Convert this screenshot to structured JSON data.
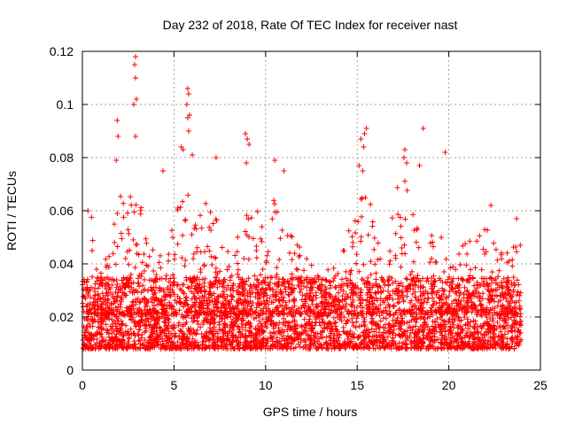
{
  "chart_data": {
    "type": "scatter",
    "title": "Day 232 of 2018, Rate Of TEC Index for receiver nast",
    "xlabel": "GPS time / hours",
    "ylabel": "ROTI / TECUs",
    "xlim": [
      0,
      25
    ],
    "ylim": [
      0,
      0.12
    ],
    "xticks": [
      0,
      5,
      10,
      15,
      20,
      25
    ],
    "yticks": [
      0,
      0.02,
      0.04,
      0.06,
      0.08,
      0.1,
      0.12
    ],
    "xtick_labels": [
      "0",
      "5",
      "10",
      "15",
      "20",
      "25"
    ],
    "ytick_labels": [
      "0",
      "0.02",
      "0.04",
      "0.06",
      "0.08",
      "0.1",
      "0.12"
    ],
    "grid": true,
    "marker": "plus",
    "series_color": "#ff0000",
    "x_extent": [
      0,
      23.95
    ],
    "typical_range": [
      0.008,
      0.035
    ],
    "outliers": [
      {
        "x": 2.9,
        "y": 0.118
      },
      {
        "x": 2.85,
        "y": 0.115
      },
      {
        "x": 2.9,
        "y": 0.11
      },
      {
        "x": 2.8,
        "y": 0.1
      },
      {
        "x": 2.95,
        "y": 0.102
      },
      {
        "x": 2.9,
        "y": 0.088
      },
      {
        "x": 1.9,
        "y": 0.094
      },
      {
        "x": 1.95,
        "y": 0.088
      },
      {
        "x": 1.85,
        "y": 0.079
      },
      {
        "x": 5.75,
        "y": 0.106
      },
      {
        "x": 5.8,
        "y": 0.104
      },
      {
        "x": 5.7,
        "y": 0.1
      },
      {
        "x": 5.75,
        "y": 0.095
      },
      {
        "x": 5.8,
        "y": 0.09
      },
      {
        "x": 5.85,
        "y": 0.096
      },
      {
        "x": 5.4,
        "y": 0.084
      },
      {
        "x": 5.5,
        "y": 0.083
      },
      {
        "x": 6.0,
        "y": 0.081
      },
      {
        "x": 4.4,
        "y": 0.075
      },
      {
        "x": 7.3,
        "y": 0.08
      },
      {
        "x": 8.9,
        "y": 0.089
      },
      {
        "x": 9.0,
        "y": 0.087
      },
      {
        "x": 9.1,
        "y": 0.085
      },
      {
        "x": 8.95,
        "y": 0.078
      },
      {
        "x": 10.5,
        "y": 0.079
      },
      {
        "x": 11.0,
        "y": 0.075
      },
      {
        "x": 15.2,
        "y": 0.087
      },
      {
        "x": 15.4,
        "y": 0.089
      },
      {
        "x": 15.5,
        "y": 0.091
      },
      {
        "x": 15.35,
        "y": 0.084
      },
      {
        "x": 15.1,
        "y": 0.077
      },
      {
        "x": 15.3,
        "y": 0.075
      },
      {
        "x": 17.6,
        "y": 0.083
      },
      {
        "x": 17.55,
        "y": 0.08
      },
      {
        "x": 17.7,
        "y": 0.078
      },
      {
        "x": 18.4,
        "y": 0.077
      },
      {
        "x": 18.6,
        "y": 0.091
      },
      {
        "x": 19.8,
        "y": 0.082
      },
      {
        "x": 22.3,
        "y": 0.062
      },
      {
        "x": 23.7,
        "y": 0.057
      },
      {
        "x": 0.3,
        "y": 0.06
      }
    ],
    "envelope": [
      {
        "x": 0.0,
        "hi": 0.045
      },
      {
        "x": 0.5,
        "hi": 0.06
      },
      {
        "x": 1.0,
        "hi": 0.04
      },
      {
        "x": 1.5,
        "hi": 0.045
      },
      {
        "x": 2.0,
        "hi": 0.07
      },
      {
        "x": 2.5,
        "hi": 0.065
      },
      {
        "x": 3.0,
        "hi": 0.075
      },
      {
        "x": 3.5,
        "hi": 0.05
      },
      {
        "x": 4.0,
        "hi": 0.045
      },
      {
        "x": 4.5,
        "hi": 0.05
      },
      {
        "x": 5.0,
        "hi": 0.06
      },
      {
        "x": 5.5,
        "hi": 0.075
      },
      {
        "x": 6.0,
        "hi": 0.072
      },
      {
        "x": 6.5,
        "hi": 0.065
      },
      {
        "x": 7.0,
        "hi": 0.062
      },
      {
        "x": 7.5,
        "hi": 0.055
      },
      {
        "x": 8.0,
        "hi": 0.045
      },
      {
        "x": 8.5,
        "hi": 0.055
      },
      {
        "x": 9.0,
        "hi": 0.07
      },
      {
        "x": 9.5,
        "hi": 0.068
      },
      {
        "x": 10.0,
        "hi": 0.06
      },
      {
        "x": 10.5,
        "hi": 0.065
      },
      {
        "x": 11.0,
        "hi": 0.058
      },
      {
        "x": 11.5,
        "hi": 0.055
      },
      {
        "x": 12.0,
        "hi": 0.045
      },
      {
        "x": 12.5,
        "hi": 0.04
      },
      {
        "x": 13.0,
        "hi": 0.035
      },
      {
        "x": 13.5,
        "hi": 0.04
      },
      {
        "x": 14.0,
        "hi": 0.045
      },
      {
        "x": 14.5,
        "hi": 0.06
      },
      {
        "x": 15.0,
        "hi": 0.065
      },
      {
        "x": 15.5,
        "hi": 0.07
      },
      {
        "x": 16.0,
        "hi": 0.06
      },
      {
        "x": 16.5,
        "hi": 0.062
      },
      {
        "x": 17.0,
        "hi": 0.065
      },
      {
        "x": 17.5,
        "hi": 0.075
      },
      {
        "x": 18.0,
        "hi": 0.065
      },
      {
        "x": 18.5,
        "hi": 0.06
      },
      {
        "x": 19.0,
        "hi": 0.05
      },
      {
        "x": 19.5,
        "hi": 0.06
      },
      {
        "x": 20.0,
        "hi": 0.045
      },
      {
        "x": 20.5,
        "hi": 0.048
      },
      {
        "x": 21.0,
        "hi": 0.05
      },
      {
        "x": 21.5,
        "hi": 0.05
      },
      {
        "x": 22.0,
        "hi": 0.055
      },
      {
        "x": 22.5,
        "hi": 0.055
      },
      {
        "x": 23.0,
        "hi": 0.045
      },
      {
        "x": 23.5,
        "hi": 0.055
      },
      {
        "x": 23.95,
        "hi": 0.058
      }
    ]
  }
}
